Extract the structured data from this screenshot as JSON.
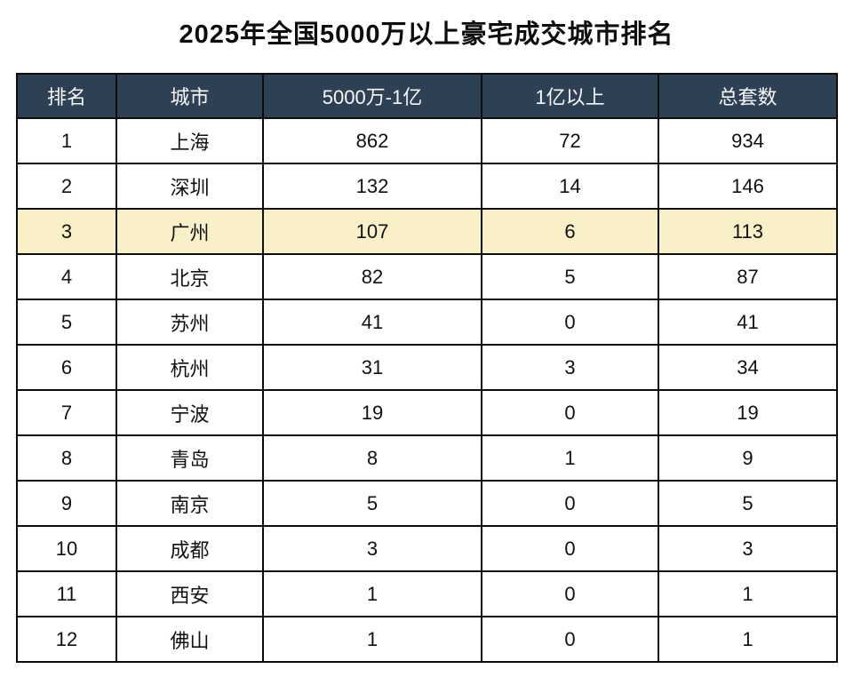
{
  "title": "2025年全国5000万以上豪宅成交城市排名",
  "colors": {
    "header_bg": "#2e4154",
    "header_text": "#f5f7f9",
    "highlight_row_bg": "#faf0c8",
    "border": "#0d0d0d",
    "page_bg": "#ffffff",
    "body_text": "#111111"
  },
  "chart_data": {
    "type": "table",
    "title": "2025年全国5000万以上豪宅成交城市排名",
    "columns": [
      "排名",
      "城市",
      "5000万-1亿",
      "1亿以上",
      "总套数"
    ],
    "rows": [
      [
        "1",
        "上海",
        "862",
        "72",
        "934"
      ],
      [
        "2",
        "深圳",
        "132",
        "14",
        "146"
      ],
      [
        "3",
        "广州",
        "107",
        "6",
        "113"
      ],
      [
        "4",
        "北京",
        "82",
        "5",
        "87"
      ],
      [
        "5",
        "苏州",
        "41",
        "0",
        "41"
      ],
      [
        "6",
        "杭州",
        "31",
        "3",
        "34"
      ],
      [
        "7",
        "宁波",
        "19",
        "0",
        "19"
      ],
      [
        "8",
        "青岛",
        "8",
        "1",
        "9"
      ],
      [
        "9",
        "南京",
        "5",
        "0",
        "5"
      ],
      [
        "10",
        "成都",
        "3",
        "0",
        "3"
      ],
      [
        "11",
        "西安",
        "1",
        "0",
        "1"
      ],
      [
        "12",
        "佛山",
        "1",
        "0",
        "1"
      ]
    ],
    "highlighted_row_index": 2,
    "legend_position": "none",
    "grid": true
  }
}
